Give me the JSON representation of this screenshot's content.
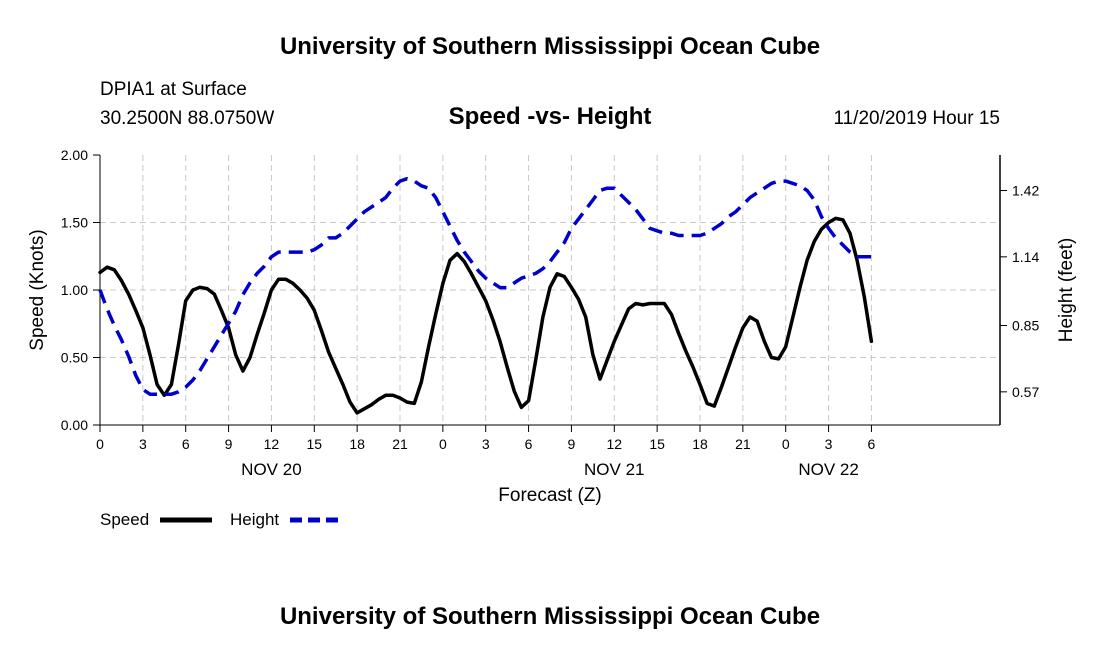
{
  "header": {
    "title": "University of Southern Mississippi Ocean Cube",
    "station": "DPIA1 at Surface",
    "coords": "30.2500N 88.0750W",
    "plot_title": "Speed -vs- Height",
    "datetime": "11/20/2019 Hour 15"
  },
  "footer": {
    "title": "University of Southern Mississippi Ocean Cube"
  },
  "legend": {
    "items": [
      {
        "label": "Speed",
        "color": "#000000",
        "style": "solid"
      },
      {
        "label": "Height",
        "color": "#0000cc",
        "style": "dashed"
      }
    ]
  },
  "chart_data": {
    "type": "line",
    "title": "Speed -vs- Height",
    "xlabel": "Forecast (Z)",
    "ylabel": "Speed (Knots)",
    "y2label": "Height (feet)",
    "xlim": [
      0,
      63
    ],
    "ylim": [
      0,
      2.0
    ],
    "y2lim": [
      0.43,
      1.57
    ],
    "grid": true,
    "x_ticks": [
      {
        "x": 0,
        "label": "0"
      },
      {
        "x": 3,
        "label": "3"
      },
      {
        "x": 6,
        "label": "6"
      },
      {
        "x": 9,
        "label": "9"
      },
      {
        "x": 12,
        "label": "12"
      },
      {
        "x": 15,
        "label": "15"
      },
      {
        "x": 18,
        "label": "18"
      },
      {
        "x": 21,
        "label": "21"
      },
      {
        "x": 24,
        "label": "0"
      },
      {
        "x": 27,
        "label": "3"
      },
      {
        "x": 30,
        "label": "6"
      },
      {
        "x": 33,
        "label": "9"
      },
      {
        "x": 36,
        "label": "12"
      },
      {
        "x": 39,
        "label": "15"
      },
      {
        "x": 42,
        "label": "18"
      },
      {
        "x": 45,
        "label": "21"
      },
      {
        "x": 48,
        "label": "0"
      },
      {
        "x": 51,
        "label": "3"
      },
      {
        "x": 54,
        "label": "6"
      }
    ],
    "day_labels": [
      {
        "x": 12,
        "label": "NOV 20"
      },
      {
        "x": 36,
        "label": "NOV 21"
      },
      {
        "x": 51,
        "label": "NOV 22"
      }
    ],
    "y_ticks": [
      {
        "v": 0.0,
        "label": "0.00"
      },
      {
        "v": 0.5,
        "label": "0.50"
      },
      {
        "v": 1.0,
        "label": "1.00"
      },
      {
        "v": 1.5,
        "label": "1.50"
      },
      {
        "v": 2.0,
        "label": "2.00"
      }
    ],
    "y2_ticks": [
      {
        "v": 0.57,
        "label": "0.57"
      },
      {
        "v": 0.85,
        "label": "0.85"
      },
      {
        "v": 1.14,
        "label": "1.14"
      },
      {
        "v": 1.42,
        "label": "1.42"
      }
    ],
    "series": [
      {
        "name": "Speed",
        "axis": "left",
        "x": [
          0,
          0.5,
          1,
          1.5,
          2,
          2.5,
          3,
          3.5,
          4,
          4.5,
          5,
          5.5,
          6,
          6.5,
          7,
          7.5,
          8,
          8.5,
          9,
          9.5,
          10,
          10.5,
          11,
          11.5,
          12,
          12.5,
          13,
          13.5,
          14,
          14.5,
          15,
          15.5,
          16,
          16.5,
          17,
          17.5,
          18,
          18.5,
          19,
          19.5,
          20,
          20.5,
          21,
          21.5,
          22,
          22.5,
          23,
          23.5,
          24,
          24.5,
          25,
          25.5,
          26,
          26.5,
          27,
          27.5,
          28,
          28.5,
          29,
          29.5,
          30,
          30.5,
          31,
          31.5,
          32,
          32.5,
          33,
          33.5,
          34,
          34.5,
          35,
          35.5,
          36,
          36.5,
          37,
          37.5,
          38,
          38.5,
          39,
          39.5,
          40,
          40.5,
          41,
          41.5,
          42,
          42.5,
          43,
          43.5,
          44,
          44.5,
          45,
          45.5,
          46,
          46.5,
          47,
          47.5,
          48,
          48.5,
          49,
          49.5,
          50,
          50.5,
          51,
          51.5,
          52,
          52.5,
          53,
          53.5,
          54
        ],
        "values": [
          1.13,
          1.17,
          1.15,
          1.07,
          0.97,
          0.85,
          0.72,
          0.52,
          0.3,
          0.22,
          0.3,
          0.6,
          0.92,
          1.0,
          1.02,
          1.01,
          0.97,
          0.85,
          0.72,
          0.52,
          0.4,
          0.5,
          0.67,
          0.83,
          1.0,
          1.08,
          1.08,
          1.05,
          1.0,
          0.94,
          0.85,
          0.7,
          0.54,
          0.42,
          0.3,
          0.17,
          0.09,
          0.12,
          0.15,
          0.19,
          0.22,
          0.22,
          0.2,
          0.17,
          0.16,
          0.32,
          0.58,
          0.82,
          1.05,
          1.22,
          1.27,
          1.21,
          1.12,
          1.02,
          0.92,
          0.78,
          0.62,
          0.43,
          0.25,
          0.13,
          0.18,
          0.48,
          0.8,
          1.02,
          1.12,
          1.1,
          1.02,
          0.93,
          0.8,
          0.52,
          0.34,
          0.48,
          0.62,
          0.74,
          0.86,
          0.9,
          0.89,
          0.9,
          0.9,
          0.9,
          0.82,
          0.68,
          0.55,
          0.43,
          0.3,
          0.16,
          0.14,
          0.28,
          0.43,
          0.58,
          0.72,
          0.8,
          0.77,
          0.62,
          0.5,
          0.49,
          0.58,
          0.8,
          1.02,
          1.22,
          1.36,
          1.45,
          1.5,
          1.53,
          1.52,
          1.42,
          1.22,
          0.95,
          0.62
        ]
      },
      {
        "name": "Height",
        "axis": "right",
        "x": [
          0,
          0.5,
          1,
          1.5,
          2,
          2.5,
          3,
          3.5,
          4,
          4.5,
          5,
          5.5,
          6,
          6.5,
          7,
          7.5,
          8,
          8.5,
          9,
          9.5,
          10,
          10.5,
          11,
          11.5,
          12,
          12.5,
          13,
          13.5,
          14,
          14.5,
          15,
          15.5,
          16,
          16.5,
          17,
          17.5,
          18,
          18.5,
          19,
          19.5,
          20,
          20.5,
          21,
          21.5,
          22,
          22.5,
          23,
          23.5,
          24,
          24.5,
          25,
          25.5,
          26,
          26.5,
          27,
          27.5,
          28,
          28.5,
          29,
          29.5,
          30,
          30.5,
          31,
          31.5,
          32,
          32.5,
          33,
          33.5,
          34,
          34.5,
          35,
          35.5,
          36,
          36.5,
          37,
          37.5,
          38,
          38.5,
          39,
          39.5,
          40,
          40.5,
          41,
          41.5,
          42,
          42.5,
          43,
          43.5,
          44,
          44.5,
          45,
          45.5,
          46,
          46.5,
          47,
          47.5,
          48,
          48.5,
          49,
          49.5,
          50,
          50.5,
          51,
          51.5,
          52,
          52.5,
          53,
          53.5,
          54
        ],
        "values": [
          1.0,
          0.92,
          0.85,
          0.79,
          0.72,
          0.64,
          0.58,
          0.56,
          0.56,
          0.56,
          0.56,
          0.57,
          0.59,
          0.62,
          0.66,
          0.71,
          0.76,
          0.81,
          0.86,
          0.91,
          0.98,
          1.03,
          1.07,
          1.1,
          1.14,
          1.16,
          1.16,
          1.16,
          1.16,
          1.16,
          1.17,
          1.19,
          1.22,
          1.22,
          1.24,
          1.27,
          1.3,
          1.33,
          1.35,
          1.37,
          1.39,
          1.43,
          1.46,
          1.47,
          1.46,
          1.44,
          1.43,
          1.39,
          1.33,
          1.27,
          1.21,
          1.16,
          1.12,
          1.08,
          1.05,
          1.03,
          1.01,
          1.01,
          1.03,
          1.05,
          1.06,
          1.07,
          1.09,
          1.12,
          1.16,
          1.2,
          1.26,
          1.3,
          1.34,
          1.38,
          1.42,
          1.43,
          1.43,
          1.4,
          1.37,
          1.34,
          1.3,
          1.26,
          1.25,
          1.24,
          1.24,
          1.23,
          1.23,
          1.23,
          1.23,
          1.24,
          1.26,
          1.28,
          1.31,
          1.33,
          1.36,
          1.39,
          1.41,
          1.43,
          1.45,
          1.46,
          1.46,
          1.45,
          1.44,
          1.42,
          1.38,
          1.31,
          1.26,
          1.22,
          1.19,
          1.16,
          1.14,
          1.14,
          1.14
        ]
      }
    ]
  }
}
